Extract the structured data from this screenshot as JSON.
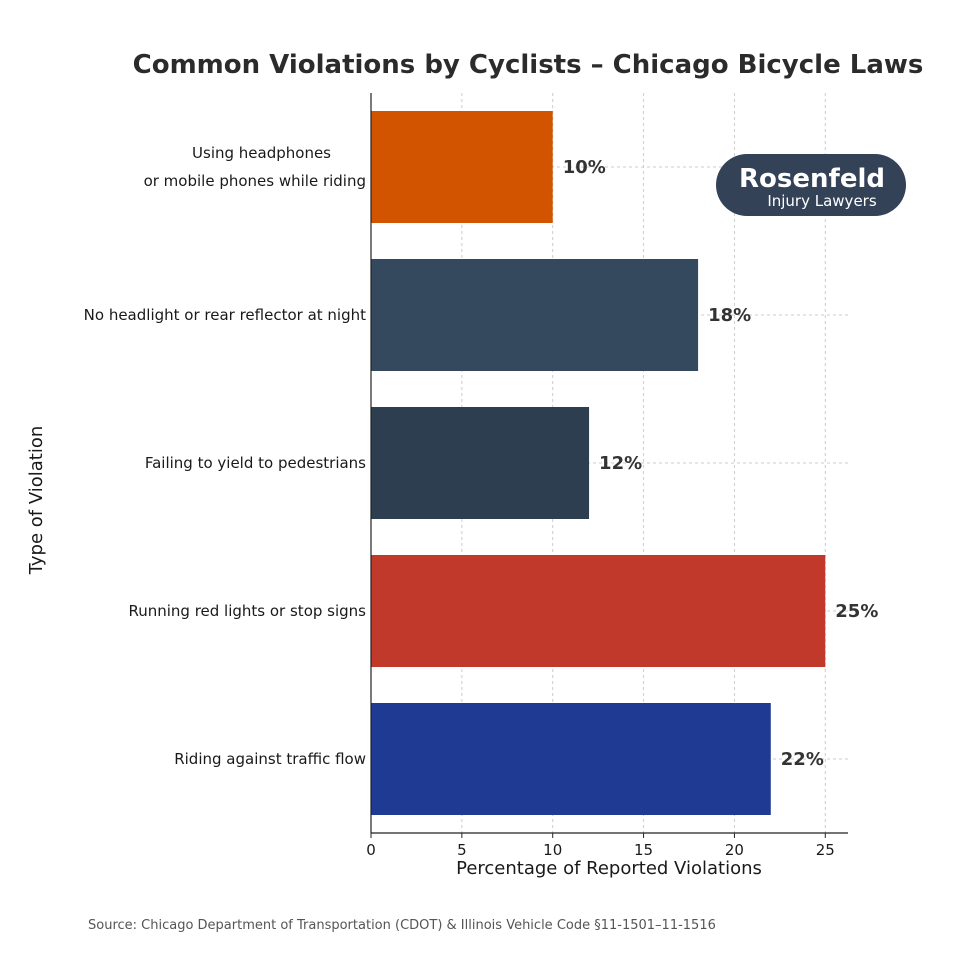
{
  "chart_data": {
    "type": "bar",
    "orientation": "horizontal",
    "title": "Common Violations by Cyclists – Chicago Bicycle Laws",
    "xlabel": "Percentage of Reported Violations",
    "ylabel": "Type of Violation",
    "xlim": [
      0,
      26.25
    ],
    "xticks": [
      0,
      5,
      10,
      15,
      20,
      25
    ],
    "grid": true,
    "categories": [
      [
        "Using headphones",
        "or mobile phones while riding"
      ],
      [
        "No headlight or rear reflector at night"
      ],
      [
        "Failing to yield to pedestrians"
      ],
      [
        "Running red lights or stop signs"
      ],
      [
        "Riding against traffic flow"
      ]
    ],
    "values": [
      10,
      18,
      12,
      25,
      22
    ],
    "data_labels": [
      "10%",
      "18%",
      "12%",
      "25%",
      "22%"
    ],
    "colors": [
      "#d35400",
      "#34495e",
      "#2c3e50",
      "#c0392b",
      "#1f3a93"
    ],
    "source": "Source: Chicago Department of Transportation (CDOT) & Illinois Vehicle Code §11-1501–11-1516"
  },
  "logo": {
    "line1": "Rosenfeld",
    "line2": "Injury Lawyers",
    "color": "#344258"
  }
}
